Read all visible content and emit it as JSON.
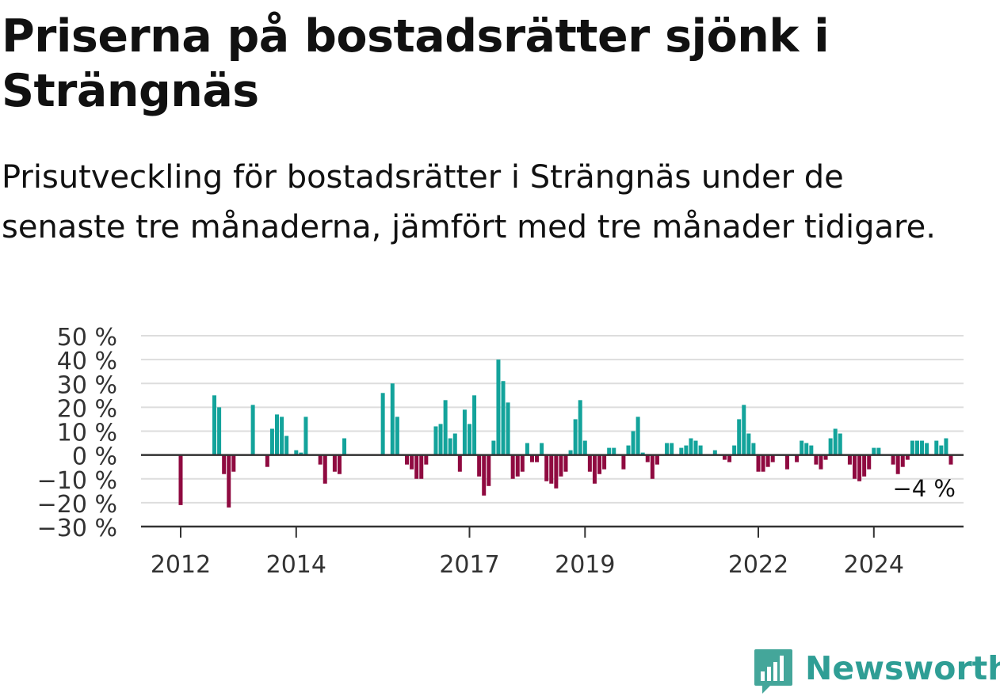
{
  "title": "Priserna på bostadsrätter sjönk i Strängnäs",
  "subtitle": "Prisutveckling för bostadsrätter i Strängnäs under de senaste tre månaderna, jämfört med tre månader tidigare.",
  "brand": {
    "name": "Newsworthy"
  },
  "colors": {
    "positive": "#13a39b",
    "negative": "#8f0a40",
    "grid": "#dddddd",
    "axis": "#333333",
    "text": "#333333"
  },
  "chart_data": {
    "type": "bar",
    "ylim": [
      -30,
      50
    ],
    "yticks": [
      50,
      40,
      30,
      20,
      10,
      0,
      -10,
      -20,
      -30
    ],
    "ytick_labels": [
      "50 %",
      "40 %",
      "30 %",
      "20 %",
      "10 %",
      "0 %",
      "−10 %",
      "−20 %",
      "−30 %"
    ],
    "xticks": [
      {
        "label": "2012",
        "date": "2012-01"
      },
      {
        "label": "2014",
        "date": "2014-01"
      },
      {
        "label": "2017",
        "date": "2017-01"
      },
      {
        "label": "2019",
        "date": "2019-01"
      },
      {
        "label": "2022",
        "date": "2022-01"
      },
      {
        "label": "2024",
        "date": "2024-01"
      }
    ],
    "last_value_label": "−4 %",
    "series": [
      {
        "start": "2012-01",
        "values": [
          -21,
          0,
          0,
          0,
          0,
          0,
          0,
          25,
          20,
          -8,
          -22,
          -7,
          0,
          0,
          0,
          21,
          0,
          0,
          -5,
          11,
          17,
          16,
          8,
          0,
          2,
          1,
          16,
          0,
          0,
          -4,
          -12,
          0,
          -7,
          -8,
          7,
          0,
          0,
          0,
          0,
          0,
          0,
          0,
          26,
          0,
          30,
          16,
          0,
          -4,
          -6,
          -10,
          -10,
          -4,
          0,
          12,
          13,
          23,
          7,
          9,
          -7,
          19,
          13,
          25,
          -9,
          -17,
          -13,
          6,
          40,
          31,
          22,
          -10,
          -9,
          -7,
          5,
          -3,
          -3,
          5,
          -11,
          -12,
          -14,
          -9,
          -7,
          2,
          15,
          23,
          6,
          -7,
          -12,
          -8,
          -6,
          3,
          3,
          0,
          -6,
          4,
          10,
          16,
          1,
          -3,
          -10,
          -4,
          0,
          5,
          5,
          0,
          3,
          4,
          7,
          6,
          4,
          0,
          0,
          2,
          0,
          -2,
          -3,
          4,
          15,
          21,
          9,
          5,
          -7,
          -7,
          -5,
          -3,
          0,
          0,
          -6,
          0,
          -3,
          6,
          5,
          4,
          -4,
          -6,
          -2,
          7,
          11,
          9,
          0,
          -4,
          -10,
          -11,
          -9,
          -6,
          3,
          3,
          0,
          0,
          -4,
          -8,
          -5,
          -2,
          6,
          6,
          6,
          5,
          0,
          6,
          4,
          7,
          -4
        ]
      }
    ]
  }
}
